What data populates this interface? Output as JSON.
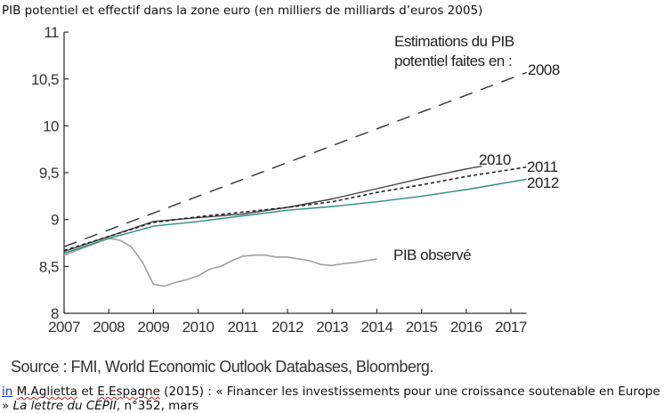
{
  "chart_data": {
    "type": "line",
    "title": "PIB potentiel et effectif dans la zone euro (en milliers de milliards d’euros 2005)",
    "xlabel": "",
    "ylabel": "",
    "xlim": [
      2007,
      2017.35
    ],
    "ylim": [
      8,
      11
    ],
    "x_ticks": [
      "2007",
      "2008",
      "2009",
      "2010",
      "2011",
      "2012",
      "2013",
      "2014",
      "2015",
      "2016",
      "2017"
    ],
    "y_ticks": [
      "8",
      "8,5",
      "9",
      "9,5",
      "10",
      "10,5",
      "11"
    ],
    "y_tick_values": [
      8,
      8.5,
      9,
      9.5,
      10,
      10.5,
      11
    ],
    "grid": false,
    "annotation": {
      "line1": "Estimations du PIB",
      "line2": "potentiel faites en :"
    },
    "series": [
      {
        "name": "2008",
        "label": "2008",
        "style": "dashed",
        "color": "#333333",
        "x": [
          2007,
          2017.35
        ],
        "y": [
          8.71,
          10.57
        ]
      },
      {
        "name": "2010",
        "label": "2010",
        "style": "solid",
        "color": "#444444",
        "x": [
          2007,
          2008,
          2009,
          2010,
          2011,
          2012,
          2013,
          2014,
          2015,
          2016,
          2016.35
        ],
        "y": [
          8.66,
          8.82,
          8.98,
          9.02,
          9.06,
          9.13,
          9.22,
          9.33,
          9.44,
          9.54,
          9.57
        ]
      },
      {
        "name": "2011",
        "label": "2011",
        "style": "dotted",
        "color": "#222222",
        "x": [
          2007,
          2008,
          2009,
          2010,
          2011,
          2012,
          2013,
          2014,
          2015,
          2016,
          2017.35
        ],
        "y": [
          8.67,
          8.82,
          8.97,
          9.03,
          9.08,
          9.13,
          9.19,
          9.29,
          9.37,
          9.46,
          9.56
        ]
      },
      {
        "name": "2012",
        "label": "2012",
        "style": "solid",
        "color": "#2e8b7a",
        "x": [
          2007,
          2008,
          2009,
          2010,
          2011,
          2012,
          2013,
          2014,
          2015,
          2016,
          2017.35
        ],
        "y": [
          8.64,
          8.8,
          8.93,
          8.98,
          9.04,
          9.1,
          9.14,
          9.19,
          9.25,
          9.32,
          9.43
        ]
      },
      {
        "name": "PIB observé",
        "label": "PIB observé",
        "style": "solid",
        "color": "#a0a0a0",
        "x": [
          2007,
          2007.5,
          2008,
          2008.25,
          2008.5,
          2008.75,
          2009,
          2009.25,
          2009.5,
          2009.75,
          2010,
          2010.25,
          2010.5,
          2010.75,
          2011,
          2011.25,
          2011.5,
          2011.75,
          2012,
          2012.25,
          2012.5,
          2012.75,
          2013,
          2013.25,
          2013.5,
          2013.75,
          2014
        ],
        "y": [
          8.62,
          8.71,
          8.8,
          8.78,
          8.71,
          8.55,
          8.31,
          8.29,
          8.33,
          8.36,
          8.4,
          8.47,
          8.5,
          8.56,
          8.61,
          8.62,
          8.62,
          8.6,
          8.6,
          8.58,
          8.56,
          8.52,
          8.51,
          8.53,
          8.54,
          8.56,
          8.58
        ]
      }
    ]
  },
  "source": "Source : FMI, World Economic Outlook Databases, Bloomberg.",
  "citation": {
    "in": "in",
    "author1": "M.Aglietta",
    "et": " et ",
    "author2": "E.Espagne",
    "rest": " (2015) : « Financer les investissements pour une croissance soutenable en Europe",
    "line2_start": "»  ",
    "journal": "La lettre du CEPII",
    "line2_end": ", n°352, mars"
  }
}
